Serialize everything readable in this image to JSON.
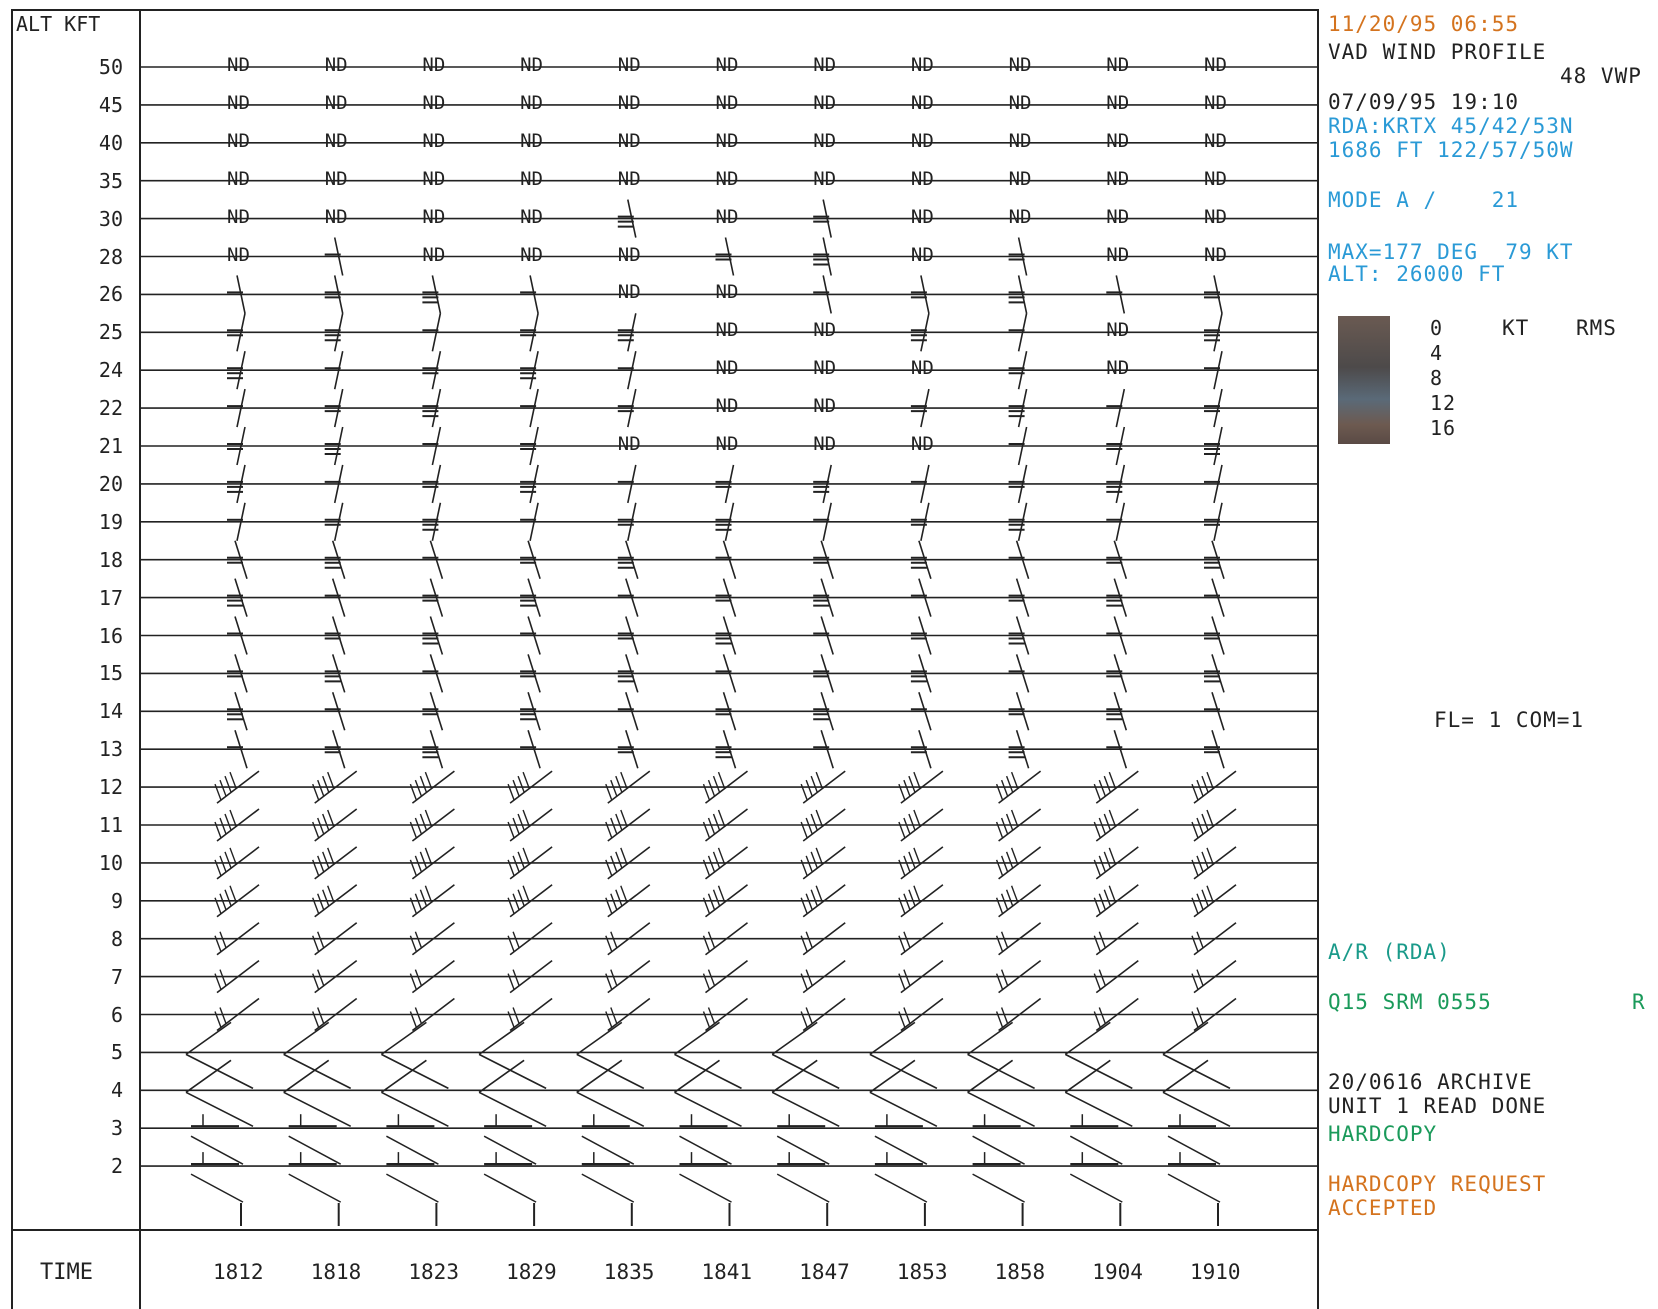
{
  "header": {
    "alt_axis_title": "ALT KFT",
    "time_axis_title": "TIME"
  },
  "altitudes": [
    "50",
    "45",
    "40",
    "35",
    "30",
    "28",
    "26",
    "25",
    "24",
    "22",
    "21",
    "20",
    "19",
    "18",
    "17",
    "16",
    "15",
    "14",
    "13",
    "12",
    "11",
    "10",
    "9",
    "8",
    "7",
    "6",
    "5",
    "4",
    "3",
    "2"
  ],
  "times": [
    "1812",
    "1818",
    "1823",
    "1829",
    "1835",
    "1841",
    "1847",
    "1853",
    "1858",
    "1904",
    "1910"
  ],
  "no_data_label": "ND",
  "no_data_cells": [
    [
      0,
      0
    ],
    [
      0,
      1
    ],
    [
      0,
      2
    ],
    [
      0,
      3
    ],
    [
      0,
      4
    ],
    [
      0,
      5
    ],
    [
      0,
      6
    ],
    [
      0,
      7
    ],
    [
      0,
      8
    ],
    [
      0,
      9
    ],
    [
      0,
      10
    ],
    [
      1,
      0
    ],
    [
      1,
      1
    ],
    [
      1,
      2
    ],
    [
      1,
      3
    ],
    [
      1,
      4
    ],
    [
      1,
      5
    ],
    [
      1,
      6
    ],
    [
      1,
      7
    ],
    [
      1,
      8
    ],
    [
      1,
      9
    ],
    [
      1,
      10
    ],
    [
      2,
      0
    ],
    [
      2,
      1
    ],
    [
      2,
      2
    ],
    [
      2,
      3
    ],
    [
      2,
      4
    ],
    [
      2,
      5
    ],
    [
      2,
      6
    ],
    [
      2,
      7
    ],
    [
      2,
      8
    ],
    [
      2,
      9
    ],
    [
      2,
      10
    ],
    [
      3,
      0
    ],
    [
      3,
      1
    ],
    [
      3,
      2
    ],
    [
      3,
      3
    ],
    [
      3,
      4
    ],
    [
      3,
      5
    ],
    [
      3,
      6
    ],
    [
      3,
      7
    ],
    [
      3,
      8
    ],
    [
      3,
      9
    ],
    [
      3,
      10
    ],
    [
      4,
      0
    ],
    [
      4,
      1
    ],
    [
      4,
      2
    ],
    [
      4,
      3
    ],
    [
      4,
      5
    ],
    [
      4,
      7
    ],
    [
      4,
      8
    ],
    [
      4,
      9
    ],
    [
      4,
      10
    ],
    [
      5,
      0
    ],
    [
      5,
      2
    ],
    [
      5,
      3
    ],
    [
      5,
      4
    ],
    [
      5,
      7
    ],
    [
      5,
      9
    ],
    [
      5,
      10
    ],
    [
      6,
      4
    ],
    [
      6,
      5
    ],
    [
      7,
      5
    ],
    [
      7,
      6
    ],
    [
      7,
      9
    ],
    [
      8,
      5
    ],
    [
      8,
      6
    ],
    [
      8,
      7
    ],
    [
      8,
      9
    ],
    [
      9,
      5
    ],
    [
      9,
      6
    ],
    [
      10,
      4
    ],
    [
      10,
      5
    ],
    [
      10,
      6
    ],
    [
      10,
      7
    ]
  ],
  "panel": {
    "datetime": "11/20/95 06:55",
    "product_title": "VAD WIND PROFILE",
    "product_code": "48 VWP",
    "volume_datetime": "07/09/95 19:10",
    "rda_line": "RDA:KRTX 45/42/53N",
    "elevation_line": "1686 FT 122/57/50W",
    "mode_line": "MODE A /    21",
    "max_line": "MAX=177 DEG  79 KT",
    "alt_line": "ALT: 26000 FT",
    "legend_values": [
      "0",
      "4",
      "8",
      "12",
      "16"
    ],
    "legend_unit": "KT",
    "legend_title": "RMS",
    "fl_com": "FL= 1 COM=1",
    "ar_line": "A/R (RDA)",
    "srm_line": "Q15 SRM 0555",
    "srm_flag": "R",
    "archive_line1": "20/0616 ARCHIVE",
    "archive_line2": "UNIT 1 READ DONE",
    "hardcopy_status": "HARDCOPY",
    "hardcopy_request1": "HARDCOPY REQUEST",
    "hardcopy_request2": "ACCEPTED"
  },
  "colors": {
    "orange": "#d4731e",
    "blue": "#2a9ad6",
    "teal": "#1a9a8a",
    "green": "#1a9a5a",
    "ink": "#222222"
  }
}
